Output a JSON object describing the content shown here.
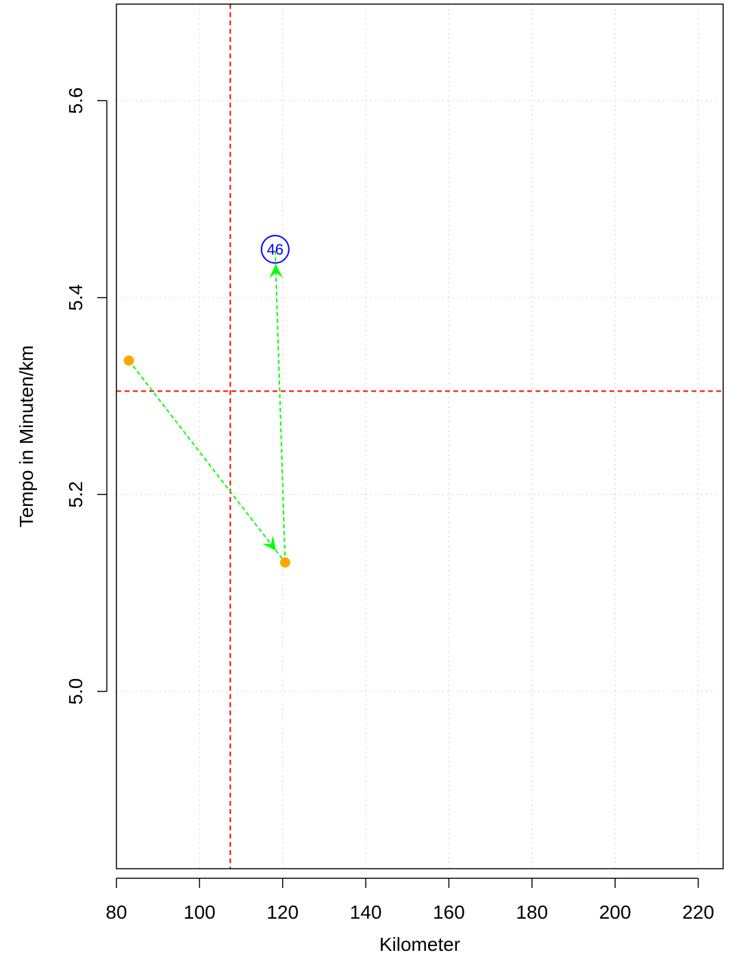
{
  "chart_data": {
    "type": "scatter",
    "title": "",
    "xlabel": "Kilometer",
    "ylabel": "Tempo in Minuten/km",
    "xlim": [
      80,
      226
    ],
    "ylim": [
      4.82,
      5.698
    ],
    "xticks": [
      80,
      100,
      120,
      140,
      160,
      180,
      200,
      220
    ],
    "xtick_labels": [
      "80",
      "100",
      "120",
      "140",
      "160",
      "180",
      "200",
      "220"
    ],
    "yticks": [
      5.0,
      5.2,
      5.4,
      5.6
    ],
    "ytick_labels": [
      "5.0",
      "5.2",
      "5.4",
      "5.6"
    ],
    "grid": true,
    "points": [
      {
        "x": 83.0,
        "y": 5.336,
        "color": "#ffa500"
      },
      {
        "x": 120.6,
        "y": 5.131,
        "color": "#ffa500"
      },
      {
        "x": 118.2,
        "y": 5.449,
        "label": "46",
        "color": "#0000ff"
      }
    ],
    "path": [
      {
        "x": 83.0,
        "y": 5.336
      },
      {
        "x": 120.6,
        "y": 5.131
      },
      {
        "x": 118.2,
        "y": 5.449
      }
    ],
    "reference_lines": {
      "vertical_x": 107.4,
      "horizontal_y": 5.305,
      "color": "#ff0000"
    },
    "path_color": "#00ff00"
  }
}
